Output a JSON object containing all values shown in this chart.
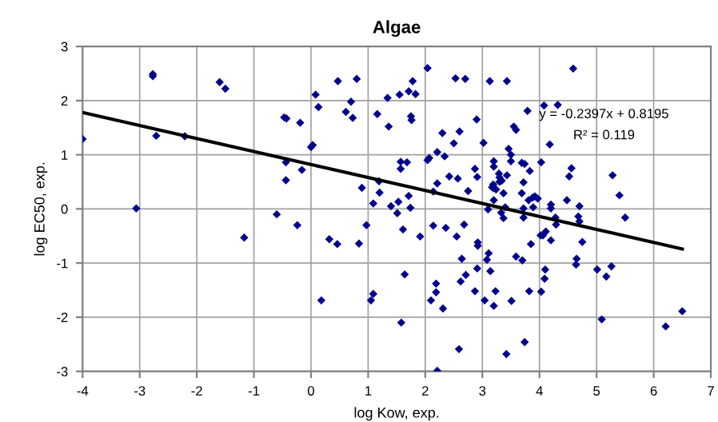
{
  "chart_data": {
    "type": "scatter",
    "title": "Algae",
    "xlabel": "log Kow, exp.",
    "ylabel": "log EC50, exp.",
    "xlim": [
      -4,
      7
    ],
    "xticks": [
      -4,
      -3,
      -2,
      -1,
      0,
      1,
      2,
      3,
      4,
      5,
      6,
      7
    ],
    "ylim": [
      -3,
      3
    ],
    "yticks": [
      -3,
      -2,
      -1,
      0,
      1,
      2,
      3
    ],
    "grid": true,
    "legend": false,
    "marker": "diamond",
    "annotations": [
      "y = -0.2397x + 0.8195",
      "R² = 0.119"
    ],
    "series": [
      {
        "color": "#00008b",
        "x": [
          -4,
          -3.06,
          -2.77,
          -2.77,
          -2.71,
          -2.21,
          -1.6,
          -1.5,
          -1.17,
          -0.6,
          -0.47,
          -0.43,
          -0.44,
          -0.44,
          -0.24,
          -0.19,
          -0.16,
          0.0,
          0.03,
          0.08,
          0.13,
          0.18,
          0.32,
          0.46,
          0.47,
          0.61,
          0.7,
          0.73,
          0.8,
          0.84,
          0.89,
          0.97,
          1.05,
          1.09,
          1.09,
          1.16,
          1.19,
          1.2,
          1.34,
          1.36,
          1.4,
          1.51,
          1.53,
          1.55,
          1.57,
          1.57,
          1.58,
          1.61,
          1.64,
          1.68,
          1.71,
          1.71,
          1.74,
          1.75,
          1.76,
          1.78,
          1.83,
          1.91,
          2.04,
          2.04,
          2.07,
          2.1,
          2.14,
          2.14,
          2.19,
          2.19,
          2.21,
          2.21,
          2.21,
          2.3,
          2.31,
          2.34,
          2.36,
          2.42,
          2.5,
          2.53,
          2.55,
          2.57,
          2.6,
          2.59,
          2.62,
          2.64,
          2.68,
          2.7,
          2.71,
          2.75,
          2.87,
          2.87,
          2.9,
          2.91,
          2.92,
          2.92,
          2.91,
          3.02,
          3.04,
          3.08,
          3.1,
          3.13,
          3.14,
          3.17,
          3.43,
          3.2,
          3.2,
          3.19,
          3.2,
          3.29,
          3.3,
          3.3,
          3.24,
          3.34,
          3.37,
          3.2,
          3.33,
          3.37,
          3.4,
          3.43,
          3.46,
          3.5,
          3.5,
          3.55,
          3.59,
          3.69,
          3.74,
          3.72,
          3.83,
          3.69,
          3.72,
          3.72,
          3.81,
          3.88,
          3.92,
          3.97,
          3.89,
          3.79,
          4.03,
          4.18,
          4.2,
          4.2,
          4.08,
          4.48,
          4.52,
          4.56,
          4.7,
          4.68,
          4.7,
          4.28,
          4.29,
          4.02,
          4.06,
          4.11,
          4.2,
          3.85,
          3.59,
          3.7,
          4.1,
          4.09,
          4.03,
          3.82,
          3.51,
          3.2,
          3.23,
          3.11,
          3.42,
          3.74,
          4.59,
          4.32,
          4.75,
          4.65,
          4.64,
          5.01,
          5.17,
          5.26,
          5.09,
          5.28,
          5.4,
          5.5,
          6.21,
          6.5
        ],
        "values": [
          1.29,
          0.01,
          2.49,
          2.45,
          1.35,
          1.34,
          2.34,
          2.22,
          -0.53,
          -0.1,
          1.69,
          1.67,
          0.86,
          0.53,
          -0.3,
          1.59,
          0.72,
          1.14,
          1.18,
          2.11,
          1.88,
          -1.69,
          -0.56,
          -0.65,
          2.36,
          1.79,
          1.98,
          1.68,
          2.4,
          -0.64,
          0.39,
          -0.3,
          -1.69,
          -1.57,
          0.1,
          1.75,
          0.51,
          0.3,
          2.05,
          1.52,
          0.05,
          -0.08,
          0.13,
          2.11,
          0.87,
          0.74,
          -2.1,
          -0.38,
          -1.21,
          0.86,
          0.24,
          2.17,
          0.02,
          1.71,
          1.64,
          2.36,
          2.12,
          -0.51,
          2.6,
          0.9,
          0.94,
          -1.69,
          0.32,
          -0.31,
          -1.38,
          -1.54,
          1.05,
          -2.99,
          0.47,
          1.4,
          -1.84,
          0.97,
          -0.35,
          0.6,
          1.21,
          2.41,
          -0.51,
          0.56,
          1.43,
          -2.59,
          -1.34,
          -0.92,
          -0.29,
          2.4,
          -1.22,
          0.33,
          0.74,
          -1.52,
          1.65,
          0.59,
          -0.62,
          -0.68,
          -1.1,
          1.22,
          -1.69,
          -0.94,
          -0.01,
          2.36,
          -1.15,
          0.4,
          2.36,
          0.88,
          0.78,
          0.45,
          0.38,
          0.65,
          0.58,
          0.5,
          0.36,
          0.52,
          0.29,
          0.16,
          -0.07,
          -0.17,
          0.03,
          0.62,
          1.11,
          1.0,
          0.88,
          1.52,
          1.46,
          0.85,
          0.83,
          0.49,
          0.7,
          0.29,
          0.01,
          -0.16,
          0.16,
          0.21,
          0.23,
          0.19,
          0.03,
          1.81,
          0.86,
          1.19,
          0.08,
          0.01,
          1.91,
          0.16,
          0.6,
          0.75,
          0.05,
          -0.14,
          -0.23,
          -0.16,
          -0.29,
          -0.49,
          -0.49,
          -0.42,
          -0.58,
          -0.65,
          -0.88,
          -0.95,
          -1.12,
          -1.29,
          -1.53,
          -1.52,
          -1.7,
          -1.79,
          -1.52,
          -0.82,
          -2.68,
          -2.46,
          2.59,
          1.92,
          -0.61,
          -0.92,
          -1.03,
          -1.12,
          -1.25,
          -1.06,
          -2.04,
          0.62,
          0.25,
          -0.16,
          -2.17,
          -1.89
        ]
      },
      {
        "type": "line",
        "color": "#000000",
        "x": [
          -4,
          6.5
        ],
        "values": [
          1.78,
          -0.74
        ],
        "marker": "none",
        "line_style": "solid"
      }
    ]
  }
}
